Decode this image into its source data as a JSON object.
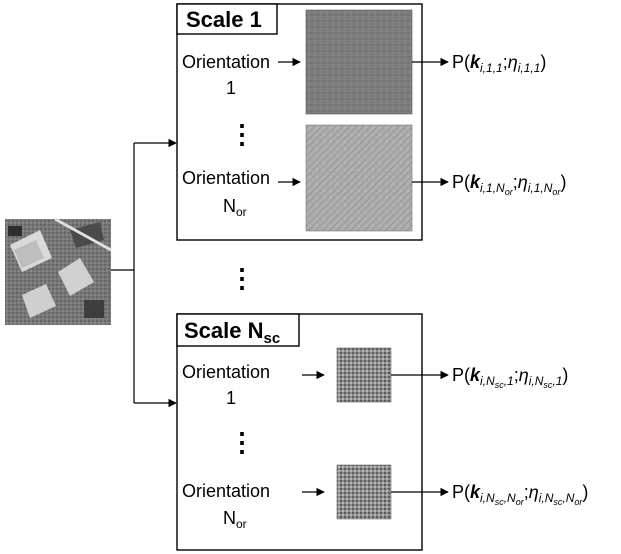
{
  "scales": [
    {
      "title": "Scale 1",
      "orientations": [
        {
          "label": "Orientation",
          "index": "1",
          "output": "P(k_{i,1,1};η_{i,1,1})"
        },
        {
          "label": "Orientation",
          "index": "N_or",
          "output": "P(k_{i,1,N_or};η_{i,1,N_or})"
        }
      ]
    },
    {
      "title": "Scale N_sc",
      "orientations": [
        {
          "label": "Orientation",
          "index": "1",
          "output": "P(k_{i,N_sc,1};η_{i,N_sc,1})"
        },
        {
          "label": "Orientation",
          "index": "N_or",
          "output": "P(k_{i,N_sc,N_or};η_{i,N_sc,N_or})"
        }
      ]
    }
  ],
  "text": {
    "scale1_title": "Scale 1",
    "scaleN_prefix": "Scale N",
    "scaleN_sub": "sc",
    "orientation": "Orientation",
    "one": "1",
    "n_main": "N",
    "n_sub": "or",
    "vdots": "⋮",
    "p_prefix": "P(",
    "k_glyph": "k",
    "eta_glyph": "η",
    "semicolon": ";",
    "close_paren": ")",
    "sub_11": "i,1,1",
    "sub_1n_pre": "i,1,N",
    "sub_ns_pre": "i,N",
    "sub_sc1_tail": ",1",
    "sub_sc_or_tail": ",N",
    "sub_sc": "sc",
    "sub_or": "or"
  },
  "colors": {
    "line": "#000000",
    "filter_dark": "#7a7a7a",
    "filter_light": "#a9a9a9",
    "filter_small": "#8c8c8c",
    "aerial": "#6f6f6f"
  },
  "icons": [
    "aerial-photo-input",
    "filter-response-image",
    "arrow-right-icon"
  ]
}
